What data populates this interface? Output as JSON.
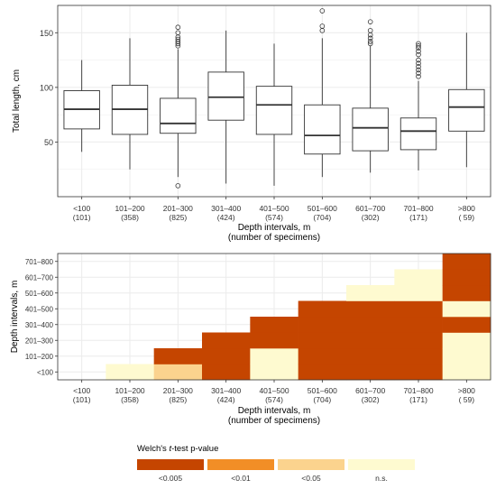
{
  "chart_data": [
    {
      "type": "boxplot",
      "title": "",
      "xlabel": "Depth intervals, m",
      "xlabel2": "(number of specimens)",
      "ylabel": "Total length, cm",
      "ylim": [
        0,
        175
      ],
      "yticks": [
        50,
        100,
        150
      ],
      "grid": true,
      "categories": [
        "<100",
        "101–200",
        "201–300",
        "301–400",
        "401–500",
        "501–600",
        "601–700",
        "701–800",
        ">800"
      ],
      "counts": [
        "(101)",
        "(358)",
        "(825)",
        "(424)",
        "(574)",
        "(704)",
        "(302)",
        "(171)",
        "( 59)"
      ],
      "boxes": [
        {
          "min": 41,
          "q1": 62,
          "median": 80,
          "q3": 97,
          "max": 125,
          "outliers": []
        },
        {
          "min": 25,
          "q1": 57,
          "median": 80,
          "q3": 102,
          "max": 145,
          "outliers": []
        },
        {
          "min": 18,
          "q1": 58,
          "median": 67,
          "q3": 90,
          "max": 135,
          "outliers": [
            10,
            138,
            140,
            142,
            144,
            146,
            150,
            155
          ]
        },
        {
          "min": 12,
          "q1": 70,
          "median": 91,
          "q3": 114,
          "max": 152,
          "outliers": []
        },
        {
          "min": 10,
          "q1": 57,
          "median": 84,
          "q3": 101,
          "max": 140,
          "outliers": []
        },
        {
          "min": 18,
          "q1": 39,
          "median": 56,
          "q3": 84,
          "max": 145,
          "outliers": [
            152,
            156,
            170
          ]
        },
        {
          "min": 22,
          "q1": 42,
          "median": 63,
          "q3": 81,
          "max": 138,
          "outliers": [
            140,
            142,
            145,
            148,
            152,
            160
          ]
        },
        {
          "min": 24,
          "q1": 43,
          "median": 60,
          "q3": 72,
          "max": 106,
          "outliers": [
            110,
            113,
            116,
            119,
            122,
            125,
            130,
            133,
            136,
            138,
            140
          ]
        },
        {
          "min": 27,
          "q1": 60,
          "median": 82,
          "q3": 98,
          "max": 150,
          "outliers": []
        }
      ]
    },
    {
      "type": "heatmap",
      "title": "",
      "xlabel": "Depth intervals, m",
      "xlabel2": "(number of specimens)",
      "ylabel": "Depth intervals, m",
      "x_categories": [
        "<100",
        "101–200",
        "201–300",
        "301–400",
        "401–500",
        "501–600",
        "601–700",
        "701–800",
        ">800"
      ],
      "x_counts": [
        "(101)",
        "(358)",
        "(825)",
        "(424)",
        "(574)",
        "(704)",
        "(302)",
        "(171)",
        "( 59)"
      ],
      "y_categories": [
        "<100",
        "101–200",
        "201–300",
        "301–400",
        "401–500",
        "501–600",
        "601–700",
        "701–800"
      ],
      "cells": [
        {
          "x": "101–200",
          "y": "<100",
          "p": "n.s."
        },
        {
          "x": "201–300",
          "y": "<100",
          "p": "<0.05"
        },
        {
          "x": "201–300",
          "y": "101–200",
          "p": "<0.005"
        },
        {
          "x": "301–400",
          "y": "<100",
          "p": "<0.005"
        },
        {
          "x": "301–400",
          "y": "101–200",
          "p": "<0.005"
        },
        {
          "x": "301–400",
          "y": "201–300",
          "p": "<0.005"
        },
        {
          "x": "401–500",
          "y": "<100",
          "p": "n.s."
        },
        {
          "x": "401–500",
          "y": "101–200",
          "p": "n.s."
        },
        {
          "x": "401–500",
          "y": "201–300",
          "p": "<0.005"
        },
        {
          "x": "401–500",
          "y": "301–400",
          "p": "<0.005"
        },
        {
          "x": "501–600",
          "y": "<100",
          "p": "<0.005"
        },
        {
          "x": "501–600",
          "y": "101–200",
          "p": "<0.005"
        },
        {
          "x": "501–600",
          "y": "201–300",
          "p": "<0.005"
        },
        {
          "x": "501–600",
          "y": "301–400",
          "p": "<0.005"
        },
        {
          "x": "501–600",
          "y": "401–500",
          "p": "<0.005"
        },
        {
          "x": "601–700",
          "y": "<100",
          "p": "<0.005"
        },
        {
          "x": "601–700",
          "y": "101–200",
          "p": "<0.005"
        },
        {
          "x": "601–700",
          "y": "201–300",
          "p": "<0.005"
        },
        {
          "x": "601–700",
          "y": "301–400",
          "p": "<0.005"
        },
        {
          "x": "601–700",
          "y": "401–500",
          "p": "<0.005"
        },
        {
          "x": "601–700",
          "y": "501–600",
          "p": "n.s."
        },
        {
          "x": "701–800",
          "y": "<100",
          "p": "<0.005"
        },
        {
          "x": "701–800",
          "y": "101–200",
          "p": "<0.005"
        },
        {
          "x": "701–800",
          "y": "201–300",
          "p": "<0.005"
        },
        {
          "x": "701–800",
          "y": "301–400",
          "p": "<0.005"
        },
        {
          "x": "701–800",
          "y": "401–500",
          "p": "<0.005"
        },
        {
          "x": "701–800",
          "y": "501–600",
          "p": "n.s."
        },
        {
          "x": "701–800",
          "y": "601–700",
          "p": "n.s."
        },
        {
          "x": ">800",
          "y": "<100",
          "p": "n.s."
        },
        {
          "x": ">800",
          "y": "101–200",
          "p": "n.s."
        },
        {
          "x": ">800",
          "y": "201–300",
          "p": "n.s."
        },
        {
          "x": ">800",
          "y": "301–400",
          "p": "<0.005"
        },
        {
          "x": ">800",
          "y": "401–500",
          "p": "n.s."
        },
        {
          "x": ">800",
          "y": "501–600",
          "p": "<0.005"
        },
        {
          "x": ">800",
          "y": "601–700",
          "p": "<0.005"
        },
        {
          "x": ">800",
          "y": "701–800",
          "p": "<0.005"
        }
      ],
      "legend": {
        "title_prefix": "Welch's ",
        "title_italic": "t",
        "title_suffix": "-test p-value",
        "position": "bottom",
        "items": [
          {
            "label": "<0.005",
            "color": "#c54500"
          },
          {
            "label": "<0.01",
            "color": "#f28e26"
          },
          {
            "label": "<0.05",
            "color": "#fbd38e"
          },
          {
            "label": "n.s.",
            "color": "#fefad0"
          }
        ]
      }
    }
  ]
}
